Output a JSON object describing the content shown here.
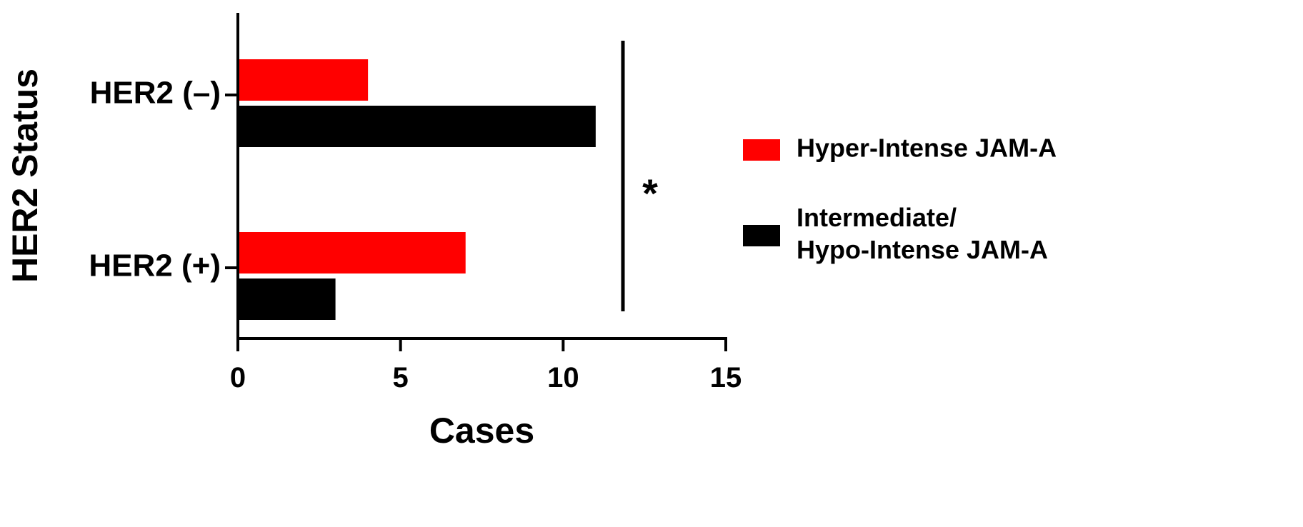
{
  "chart_data": {
    "type": "bar",
    "orientation": "horizontal",
    "title": "",
    "xlabel": "Cases",
    "ylabel": "HER2 Status",
    "xlim": [
      0,
      15
    ],
    "xticks": [
      0,
      5,
      10,
      15
    ],
    "grid": false,
    "legend_placement": "right",
    "categories": [
      "HER2 (–)",
      "HER2 (+)"
    ],
    "series": [
      {
        "name": "Hyper-Intense JAM-A",
        "color": "#ff0000",
        "values": [
          4,
          7
        ]
      },
      {
        "name": "Intermediate/ Hypo-Intense JAM-A",
        "name_lines": [
          "Intermediate/",
          "Hypo-Intense JAM-A"
        ],
        "color": "#000000",
        "values": [
          11,
          3
        ]
      }
    ],
    "annotations": [
      {
        "text": "*",
        "type": "significance-bracket"
      }
    ]
  }
}
